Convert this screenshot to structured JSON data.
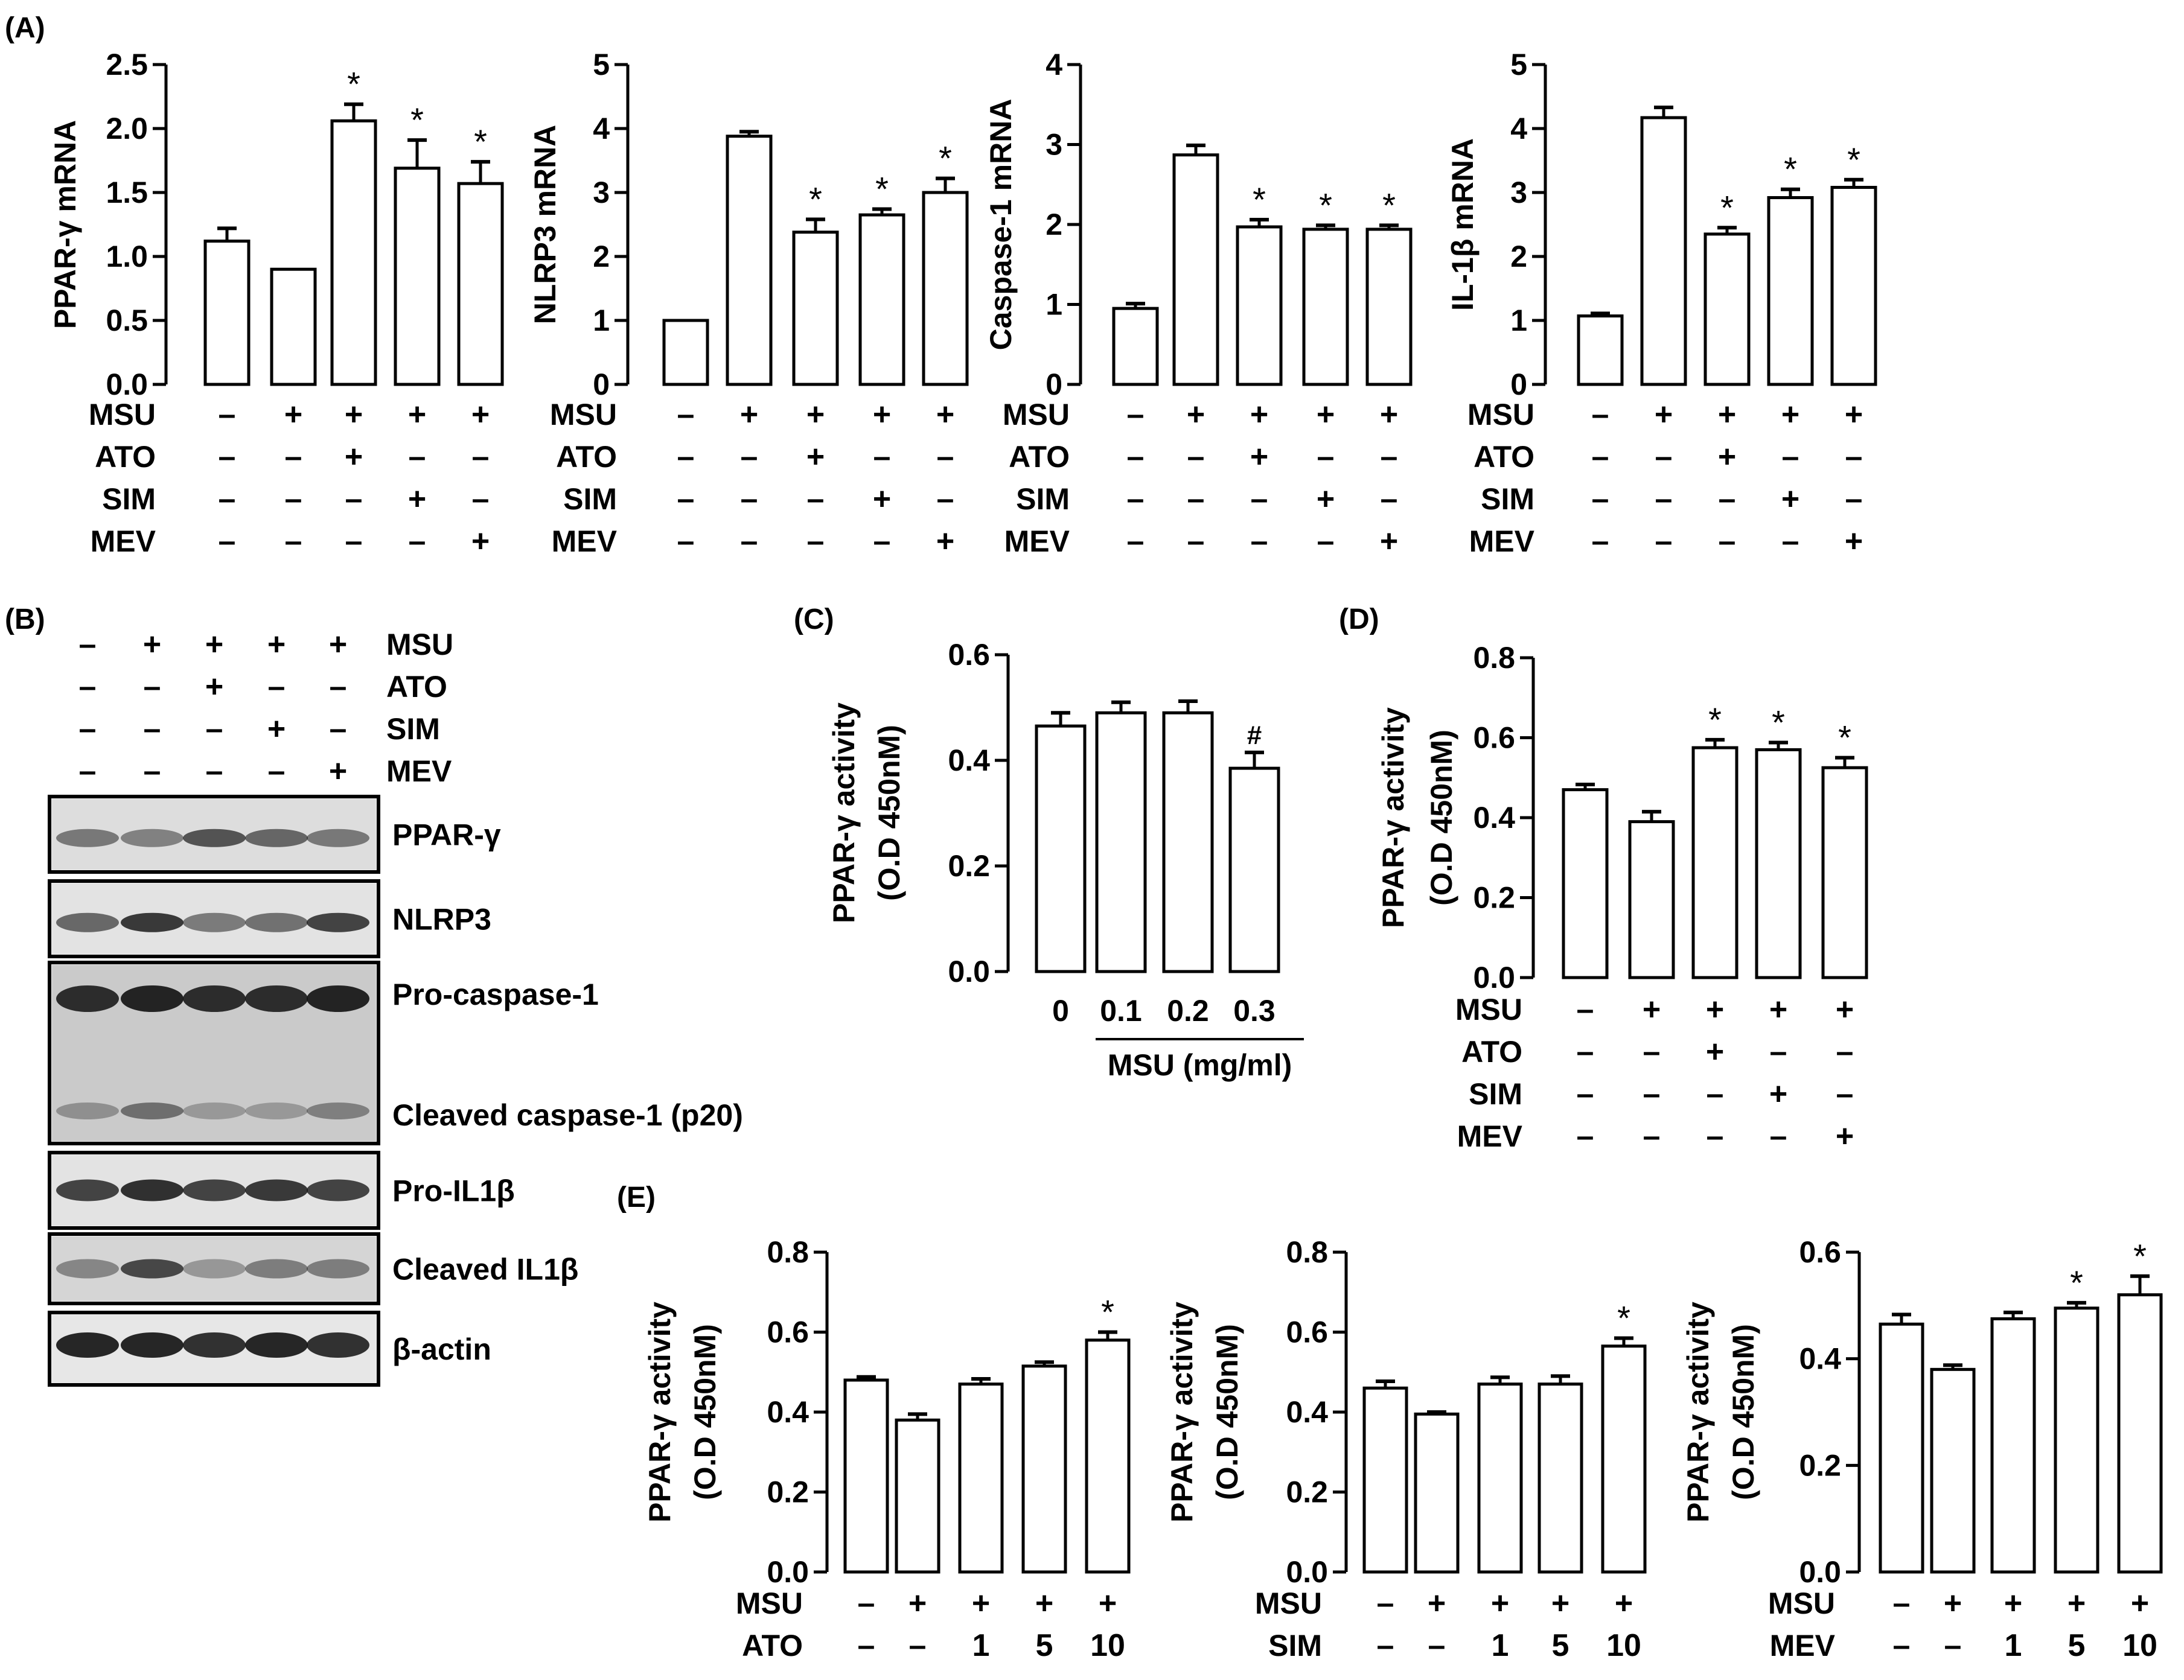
{
  "panel_labels": {
    "A": "(A)",
    "B": "(B)",
    "C": "(C)",
    "D": "(D)",
    "E": "(E)"
  },
  "chart_data": [
    {
      "id": "A1",
      "type": "bar",
      "panel": "(A)",
      "ylabel": "PPAR-γ mRNA",
      "ylim": [
        0,
        2.5
      ],
      "yticks": [
        "0.0",
        "0.5",
        "1.0",
        "1.5",
        "2.0",
        "2.5"
      ],
      "values": [
        1.12,
        0.9,
        2.06,
        1.69,
        1.57
      ],
      "errors": [
        0.1,
        0.0,
        0.13,
        0.22,
        0.17
      ],
      "annotations": [
        "",
        "",
        "*",
        "*",
        "*"
      ],
      "conditions": [
        {
          "name": "MSU",
          "values": [
            "–",
            "+",
            "+",
            "+",
            "+"
          ]
        },
        {
          "name": "ATO",
          "values": [
            "–",
            "–",
            "+",
            "–",
            "–"
          ]
        },
        {
          "name": "SIM",
          "values": [
            "–",
            "–",
            "–",
            "+",
            "–"
          ]
        },
        {
          "name": "MEV",
          "values": [
            "–",
            "–",
            "–",
            "–",
            "+"
          ]
        }
      ]
    },
    {
      "id": "A2",
      "type": "bar",
      "panel": "(A)",
      "ylabel": "NLRP3 mRNA",
      "ylim": [
        0,
        5
      ],
      "yticks": [
        "0",
        "1",
        "2",
        "3",
        "4",
        "5"
      ],
      "values": [
        1.0,
        3.88,
        2.38,
        2.65,
        3.0
      ],
      "errors": [
        0.0,
        0.07,
        0.2,
        0.09,
        0.22
      ],
      "annotations": [
        "",
        "",
        "*",
        "*",
        "*"
      ],
      "conditions": [
        {
          "name": "MSU",
          "values": [
            "–",
            "+",
            "+",
            "+",
            "+"
          ]
        },
        {
          "name": "ATO",
          "values": [
            "–",
            "–",
            "+",
            "–",
            "–"
          ]
        },
        {
          "name": "SIM",
          "values": [
            "–",
            "–",
            "–",
            "+",
            "–"
          ]
        },
        {
          "name": "MEV",
          "values": [
            "–",
            "–",
            "–",
            "–",
            "+"
          ]
        }
      ]
    },
    {
      "id": "A3",
      "type": "bar",
      "panel": "(A)",
      "ylabel": "Caspase-1 mRNA",
      "ylim": [
        0,
        4
      ],
      "yticks": [
        "0",
        "1",
        "2",
        "3",
        "4"
      ],
      "values": [
        0.95,
        2.87,
        1.97,
        1.94,
        1.94
      ],
      "errors": [
        0.06,
        0.12,
        0.09,
        0.05,
        0.05
      ],
      "annotations": [
        "",
        "",
        "*",
        "*",
        "*"
      ],
      "conditions": [
        {
          "name": "MSU",
          "values": [
            "–",
            "+",
            "+",
            "+",
            "+"
          ]
        },
        {
          "name": "ATO",
          "values": [
            "–",
            "–",
            "+",
            "–",
            "–"
          ]
        },
        {
          "name": "SIM",
          "values": [
            "–",
            "–",
            "–",
            "+",
            "–"
          ]
        },
        {
          "name": "MEV",
          "values": [
            "–",
            "–",
            "–",
            "–",
            "+"
          ]
        }
      ]
    },
    {
      "id": "A4",
      "type": "bar",
      "panel": "(A)",
      "ylabel": "IL-1β mRNA",
      "ylim": [
        0,
        5
      ],
      "yticks": [
        "0",
        "1",
        "2",
        "3",
        "4",
        "5"
      ],
      "values": [
        1.07,
        4.17,
        2.35,
        2.92,
        3.08
      ],
      "errors": [
        0.04,
        0.16,
        0.1,
        0.13,
        0.12
      ],
      "annotations": [
        "",
        "",
        "*",
        "*",
        "*"
      ],
      "conditions": [
        {
          "name": "MSU",
          "values": [
            "–",
            "+",
            "+",
            "+",
            "+"
          ]
        },
        {
          "name": "ATO",
          "values": [
            "–",
            "–",
            "+",
            "–",
            "–"
          ]
        },
        {
          "name": "SIM",
          "values": [
            "–",
            "–",
            "–",
            "+",
            "–"
          ]
        },
        {
          "name": "MEV",
          "values": [
            "–",
            "–",
            "–",
            "–",
            "+"
          ]
        }
      ]
    },
    {
      "id": "C",
      "type": "bar",
      "panel": "(C)",
      "ylabel": "PPAR-γ activity",
      "ylabel2": "(O.D 450nM)",
      "ylim": [
        0,
        0.6
      ],
      "yticks": [
        "0.0",
        "0.2",
        "0.4",
        "0.6"
      ],
      "categories": [
        "0",
        "0.1",
        "0.2",
        "0.3"
      ],
      "xlabel": "MSU (mg/ml)",
      "values": [
        0.465,
        0.49,
        0.49,
        0.385
      ],
      "errors": [
        0.025,
        0.02,
        0.022,
        0.03
      ],
      "annotations": [
        "",
        "",
        "",
        "#"
      ]
    },
    {
      "id": "D",
      "type": "bar",
      "panel": "(D)",
      "ylabel": "PPAR-γ activity",
      "ylabel2": "(O.D 450nM)",
      "ylim": [
        0,
        0.8
      ],
      "yticks": [
        "0.0",
        "0.2",
        "0.4",
        "0.6",
        "0.8"
      ],
      "values": [
        0.47,
        0.39,
        0.575,
        0.57,
        0.525
      ],
      "errors": [
        0.013,
        0.025,
        0.02,
        0.018,
        0.025
      ],
      "annotations": [
        "",
        "",
        "*",
        "*",
        "*"
      ],
      "conditions": [
        {
          "name": "MSU",
          "values": [
            "–",
            "+",
            "+",
            "+",
            "+"
          ]
        },
        {
          "name": "ATO",
          "values": [
            "–",
            "–",
            "+",
            "–",
            "–"
          ]
        },
        {
          "name": "SIM",
          "values": [
            "–",
            "–",
            "–",
            "+",
            "–"
          ]
        },
        {
          "name": "MEV",
          "values": [
            "–",
            "–",
            "–",
            "–",
            "+"
          ]
        }
      ]
    },
    {
      "id": "E1",
      "type": "bar",
      "panel": "(E)",
      "ylabel": "PPAR-γ activity",
      "ylabel2": "(O.D 450nM)",
      "ylim": [
        0,
        0.8
      ],
      "yticks": [
        "0.0",
        "0.2",
        "0.4",
        "0.6",
        "0.8"
      ],
      "values": [
        0.48,
        0.38,
        0.47,
        0.515,
        0.58
      ],
      "errors": [
        0.008,
        0.015,
        0.013,
        0.01,
        0.02
      ],
      "annotations": [
        "",
        "",
        "",
        "",
        "*"
      ],
      "conditions": [
        {
          "name": "MSU",
          "values": [
            "–",
            "+",
            "+",
            "+",
            "+"
          ]
        },
        {
          "name": "ATO",
          "values": [
            "–",
            "–",
            "1",
            "5",
            "10"
          ]
        }
      ]
    },
    {
      "id": "E2",
      "type": "bar",
      "panel": "(E)",
      "ylabel": "PPAR-γ activity",
      "ylabel2": "(O.D 450nM)",
      "ylim": [
        0,
        0.8
      ],
      "yticks": [
        "0.0",
        "0.2",
        "0.4",
        "0.6",
        "0.8"
      ],
      "values": [
        0.46,
        0.395,
        0.47,
        0.47,
        0.565
      ],
      "errors": [
        0.017,
        0.005,
        0.017,
        0.02,
        0.02
      ],
      "annotations": [
        "",
        "",
        "",
        "",
        "*"
      ],
      "conditions": [
        {
          "name": "MSU",
          "values": [
            "–",
            "+",
            "+",
            "+",
            "+"
          ]
        },
        {
          "name": "SIM",
          "values": [
            "–",
            "–",
            "1",
            "5",
            "10"
          ]
        }
      ]
    },
    {
      "id": "E3",
      "type": "bar",
      "panel": "(E)",
      "ylabel": "PPAR-γ activity",
      "ylabel2": "(O.D 450nM)",
      "ylim": [
        0,
        0.6
      ],
      "yticks": [
        "0.0",
        "0.2",
        "0.4",
        "0.6"
      ],
      "values": [
        0.465,
        0.38,
        0.475,
        0.495,
        0.52
      ],
      "errors": [
        0.018,
        0.008,
        0.012,
        0.01,
        0.035
      ],
      "annotations": [
        "",
        "",
        "",
        "*",
        "*"
      ],
      "conditions": [
        {
          "name": "MSU",
          "values": [
            "–",
            "+",
            "+",
            "+",
            "+"
          ]
        },
        {
          "name": "MEV",
          "values": [
            "–",
            "–",
            "1",
            "5",
            "10"
          ]
        }
      ]
    }
  ],
  "western_blot": {
    "conditions": [
      {
        "name": "MSU",
        "values": [
          "–",
          "+",
          "+",
          "+",
          "+"
        ]
      },
      {
        "name": "ATO",
        "values": [
          "–",
          "–",
          "+",
          "–",
          "–"
        ]
      },
      {
        "name": "SIM",
        "values": [
          "–",
          "–",
          "–",
          "+",
          "–"
        ]
      },
      {
        "name": "MEV",
        "values": [
          "–",
          "–",
          "–",
          "–",
          "+"
        ]
      }
    ],
    "bands": [
      {
        "label": "PPAR-γ"
      },
      {
        "label": "NLRP3"
      },
      {
        "label": "Pro-caspase-1",
        "label2": "Cleaved caspase-1 (p20)"
      },
      {
        "label": "Pro-IL1β"
      },
      {
        "label": "Cleaved IL1β"
      },
      {
        "label": "β-actin"
      }
    ]
  }
}
